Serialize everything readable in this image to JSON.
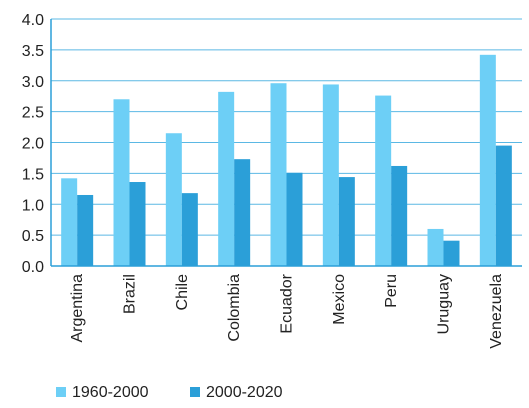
{
  "chart_data": {
    "type": "bar",
    "categories": [
      "Argentina",
      "Brazil",
      "Chile",
      "Colombia",
      "Ecuador",
      "Mexico",
      "Peru",
      "Uruguay",
      "Venezuela"
    ],
    "series": [
      {
        "name": "1960-2000",
        "color": "#6dcff6",
        "values": [
          1.42,
          2.7,
          2.15,
          2.82,
          2.96,
          2.94,
          2.76,
          0.6,
          3.42
        ]
      },
      {
        "name": "2000-2020",
        "color": "#2b9fd8",
        "values": [
          1.15,
          1.36,
          1.18,
          1.73,
          1.51,
          1.44,
          1.62,
          0.41,
          1.95
        ]
      }
    ],
    "yticks": [
      "0.0",
      "0.5",
      "1.0",
      "1.5",
      "2.0",
      "2.5",
      "3.0",
      "3.5",
      "4.0"
    ],
    "ylim": [
      0,
      4
    ],
    "grid": true,
    "legend_position": "bottom-left",
    "title": "",
    "xlabel": "",
    "ylabel": ""
  }
}
